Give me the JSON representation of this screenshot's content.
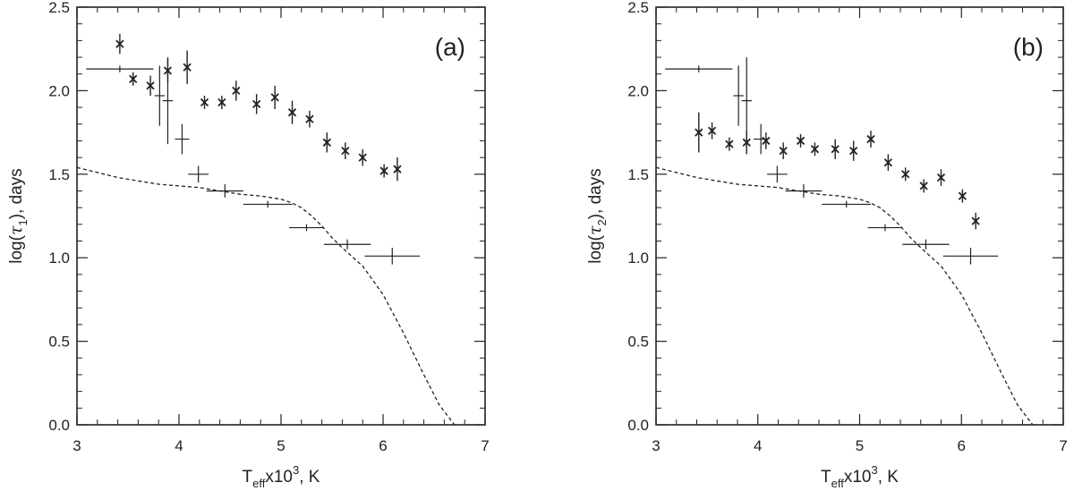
{
  "chart_data": [
    {
      "type": "scatter",
      "panel_label": "(a)",
      "xlabel": {
        "base": "T",
        "sub": "eff",
        "mid": "x10",
        "sup": "3",
        "tail": ", K"
      },
      "ylabel": {
        "pre": "log(",
        "symbol": "τ",
        "sub": "1",
        "post": "), days"
      },
      "xlim": [
        3,
        7
      ],
      "ylim": [
        0,
        2.5
      ],
      "x_ticks": [
        "3",
        "4",
        "5",
        "6",
        "7"
      ],
      "y_ticks": [
        "0.0",
        "0.5",
        "1.0",
        "1.5",
        "2.0",
        "2.5"
      ],
      "series": [
        {
          "name": "stars-asterisk",
          "marker": "asterisk",
          "points": [
            {
              "x": 3.42,
              "y": 2.28,
              "yerr": 0.06
            },
            {
              "x": 3.55,
              "y": 2.07,
              "yerr": 0.04
            },
            {
              "x": 3.72,
              "y": 2.03,
              "yerr": 0.06
            },
            {
              "x": 3.89,
              "y": 2.12,
              "yerr": 0.07
            },
            {
              "x": 4.08,
              "y": 2.14,
              "yerr": 0.1
            },
            {
              "x": 4.25,
              "y": 1.93,
              "yerr": 0.04
            },
            {
              "x": 4.42,
              "y": 1.93,
              "yerr": 0.04
            },
            {
              "x": 4.56,
              "y": 2.0,
              "yerr": 0.06
            },
            {
              "x": 4.76,
              "y": 1.92,
              "yerr": 0.06
            },
            {
              "x": 4.94,
              "y": 1.96,
              "yerr": 0.07
            },
            {
              "x": 5.11,
              "y": 1.87,
              "yerr": 0.07
            },
            {
              "x": 5.28,
              "y": 1.83,
              "yerr": 0.05
            },
            {
              "x": 5.45,
              "y": 1.69,
              "yerr": 0.06
            },
            {
              "x": 5.63,
              "y": 1.64,
              "yerr": 0.05
            },
            {
              "x": 5.8,
              "y": 1.6,
              "yerr": 0.05
            },
            {
              "x": 6.01,
              "y": 1.52,
              "yerr": 0.04
            },
            {
              "x": 6.14,
              "y": 1.53,
              "yerr": 0.07
            }
          ]
        },
        {
          "name": "binned-cross",
          "marker": "cross",
          "points": [
            {
              "x": 3.42,
              "y": 2.13,
              "xerr": 0.33,
              "yerr": 0.02
            },
            {
              "x": 3.81,
              "y": 1.97,
              "xerr": 0.05,
              "yerr": 0.18
            },
            {
              "x": 3.89,
              "y": 1.94,
              "xerr": 0.05,
              "yerr": 0.26
            },
            {
              "x": 4.03,
              "y": 1.71,
              "xerr": 0.07,
              "yerr": 0.09
            },
            {
              "x": 4.19,
              "y": 1.5,
              "xerr": 0.1,
              "yerr": 0.05
            },
            {
              "x": 4.45,
              "y": 1.4,
              "xerr": 0.18,
              "yerr": 0.04
            },
            {
              "x": 4.87,
              "y": 1.32,
              "xerr": 0.24,
              "yerr": 0.02
            },
            {
              "x": 5.25,
              "y": 1.18,
              "xerr": 0.17,
              "yerr": 0.02
            },
            {
              "x": 5.65,
              "y": 1.08,
              "xerr": 0.23,
              "yerr": 0.03
            },
            {
              "x": 6.09,
              "y": 1.01,
              "xerr": 0.27,
              "yerr": 0.05
            }
          ]
        },
        {
          "name": "model-curve",
          "style": "dashed",
          "x": [
            3.0,
            3.2,
            3.4,
            3.6,
            3.8,
            4.0,
            4.2,
            4.4,
            4.6,
            4.8,
            5.0,
            5.1,
            5.2,
            5.3,
            5.4,
            5.5,
            5.6,
            5.8,
            6.0,
            6.2,
            6.4,
            6.55,
            6.7
          ],
          "y": [
            1.54,
            1.51,
            1.48,
            1.46,
            1.44,
            1.43,
            1.42,
            1.4,
            1.38,
            1.37,
            1.35,
            1.33,
            1.3,
            1.25,
            1.19,
            1.12,
            1.06,
            0.95,
            0.78,
            0.55,
            0.3,
            0.12,
            0.0
          ]
        }
      ]
    },
    {
      "type": "scatter",
      "panel_label": "(b)",
      "xlabel": {
        "base": "T",
        "sub": "eff",
        "mid": "x10",
        "sup": "3",
        "tail": ", K"
      },
      "ylabel": {
        "pre": "log(",
        "symbol": "τ",
        "sub": "2",
        "post": "), days"
      },
      "xlim": [
        3,
        7
      ],
      "ylim": [
        0,
        2.5
      ],
      "x_ticks": [
        "3",
        "4",
        "5",
        "6",
        "7"
      ],
      "y_ticks": [
        "0.0",
        "0.5",
        "1.0",
        "1.5",
        "2.0",
        "2.5"
      ],
      "series": [
        {
          "name": "stars-asterisk",
          "marker": "asterisk",
          "points": [
            {
              "x": 3.42,
              "y": 1.75,
              "yerr": 0.12
            },
            {
              "x": 3.55,
              "y": 1.76,
              "yerr": 0.05
            },
            {
              "x": 3.72,
              "y": 1.68,
              "yerr": 0.04
            },
            {
              "x": 3.89,
              "y": 1.69,
              "yerr": 0.07
            },
            {
              "x": 4.08,
              "y": 1.7,
              "yerr": 0.05
            },
            {
              "x": 4.25,
              "y": 1.64,
              "yerr": 0.05
            },
            {
              "x": 4.42,
              "y": 1.7,
              "yerr": 0.04
            },
            {
              "x": 4.56,
              "y": 1.65,
              "yerr": 0.04
            },
            {
              "x": 4.76,
              "y": 1.65,
              "yerr": 0.06
            },
            {
              "x": 4.94,
              "y": 1.64,
              "yerr": 0.06
            },
            {
              "x": 5.11,
              "y": 1.71,
              "yerr": 0.05
            },
            {
              "x": 5.28,
              "y": 1.57,
              "yerr": 0.05
            },
            {
              "x": 5.45,
              "y": 1.5,
              "yerr": 0.04
            },
            {
              "x": 5.63,
              "y": 1.43,
              "yerr": 0.04
            },
            {
              "x": 5.8,
              "y": 1.48,
              "yerr": 0.05
            },
            {
              "x": 6.01,
              "y": 1.37,
              "yerr": 0.04
            },
            {
              "x": 6.14,
              "y": 1.22,
              "yerr": 0.05
            }
          ]
        },
        {
          "name": "binned-cross",
          "marker": "cross",
          "points": [
            {
              "x": 3.42,
              "y": 2.13,
              "xerr": 0.33,
              "yerr": 0.02
            },
            {
              "x": 3.81,
              "y": 1.97,
              "xerr": 0.05,
              "yerr": 0.18
            },
            {
              "x": 3.89,
              "y": 1.94,
              "xerr": 0.05,
              "yerr": 0.26
            },
            {
              "x": 4.03,
              "y": 1.71,
              "xerr": 0.07,
              "yerr": 0.09
            },
            {
              "x": 4.19,
              "y": 1.5,
              "xerr": 0.1,
              "yerr": 0.05
            },
            {
              "x": 4.45,
              "y": 1.4,
              "xerr": 0.18,
              "yerr": 0.04
            },
            {
              "x": 4.87,
              "y": 1.32,
              "xerr": 0.24,
              "yerr": 0.02
            },
            {
              "x": 5.25,
              "y": 1.18,
              "xerr": 0.17,
              "yerr": 0.02
            },
            {
              "x": 5.65,
              "y": 1.08,
              "xerr": 0.23,
              "yerr": 0.03
            },
            {
              "x": 6.09,
              "y": 1.01,
              "xerr": 0.27,
              "yerr": 0.05
            }
          ]
        },
        {
          "name": "model-curve",
          "style": "dashed",
          "x": [
            3.0,
            3.2,
            3.4,
            3.6,
            3.8,
            4.0,
            4.2,
            4.4,
            4.6,
            4.8,
            5.0,
            5.1,
            5.2,
            5.3,
            5.4,
            5.5,
            5.6,
            5.8,
            6.0,
            6.2,
            6.4,
            6.55,
            6.7
          ],
          "y": [
            1.54,
            1.51,
            1.48,
            1.46,
            1.44,
            1.43,
            1.42,
            1.4,
            1.38,
            1.37,
            1.35,
            1.33,
            1.3,
            1.25,
            1.19,
            1.12,
            1.06,
            0.95,
            0.78,
            0.55,
            0.3,
            0.12,
            0.0
          ]
        }
      ]
    }
  ],
  "colors": {
    "ink": "#222222",
    "background": "#ffffff"
  }
}
